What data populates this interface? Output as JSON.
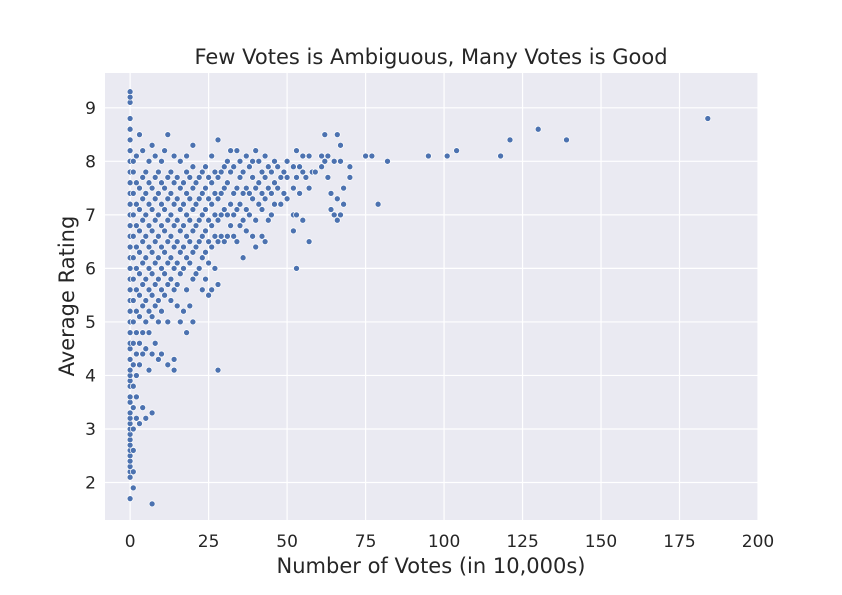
{
  "chart_data": {
    "type": "scatter",
    "title": "Few Votes is Ambiguous, Many Votes is Good",
    "xlabel": "Number of Votes (in 10,000s)",
    "ylabel": "Average Rating",
    "xlim": [
      -8,
      200
    ],
    "ylim": [
      1.3,
      9.65
    ],
    "xticks": [
      "0",
      "25",
      "50",
      "75",
      "100",
      "125",
      "150",
      "175",
      "200"
    ],
    "yticks": [
      "2",
      "3",
      "4",
      "5",
      "6",
      "7",
      "8",
      "9"
    ],
    "grid": true,
    "point_color": "#4c72b0",
    "background": "#eaeaf2",
    "points": [
      [
        0,
        1.7
      ],
      [
        0,
        2.1
      ],
      [
        0,
        2.2
      ],
      [
        0,
        2.3
      ],
      [
        0,
        2.4
      ],
      [
        0,
        2.5
      ],
      [
        0,
        2.6
      ],
      [
        0,
        2.7
      ],
      [
        0,
        2.8
      ],
      [
        0,
        2.9
      ],
      [
        0,
        3.0
      ],
      [
        0,
        3.1
      ],
      [
        0,
        3.2
      ],
      [
        0,
        3.3
      ],
      [
        0,
        3.5
      ],
      [
        0,
        3.6
      ],
      [
        0,
        3.8
      ],
      [
        0,
        3.9
      ],
      [
        0,
        4.0
      ],
      [
        0,
        4.1
      ],
      [
        0,
        4.3
      ],
      [
        0,
        4.5
      ],
      [
        0,
        4.6
      ],
      [
        0,
        4.8
      ],
      [
        0,
        5.0
      ],
      [
        0,
        5.2
      ],
      [
        0,
        5.4
      ],
      [
        0,
        5.6
      ],
      [
        0,
        5.8
      ],
      [
        0,
        6.0
      ],
      [
        0,
        6.2
      ],
      [
        0,
        6.4
      ],
      [
        0,
        6.6
      ],
      [
        0,
        6.8
      ],
      [
        0,
        7.0
      ],
      [
        0,
        7.2
      ],
      [
        0,
        7.4
      ],
      [
        0,
        7.6
      ],
      [
        0,
        7.8
      ],
      [
        0,
        8.0
      ],
      [
        0,
        8.2
      ],
      [
        0,
        8.4
      ],
      [
        0,
        8.6
      ],
      [
        0,
        8.8
      ],
      [
        0,
        9.1
      ],
      [
        0,
        9.2
      ],
      [
        0,
        9.3
      ],
      [
        1,
        1.9
      ],
      [
        1,
        2.2
      ],
      [
        1,
        2.6
      ],
      [
        1,
        3.0
      ],
      [
        1,
        3.4
      ],
      [
        1,
        3.8
      ],
      [
        1,
        4.2
      ],
      [
        1,
        4.6
      ],
      [
        1,
        5.0
      ],
      [
        1,
        5.4
      ],
      [
        1,
        5.8
      ],
      [
        1,
        6.2
      ],
      [
        1,
        6.6
      ],
      [
        1,
        7.0
      ],
      [
        1,
        7.4
      ],
      [
        1,
        7.8
      ],
      [
        1,
        8.0
      ],
      [
        2,
        3.2
      ],
      [
        2,
        3.6
      ],
      [
        2,
        4.0
      ],
      [
        2,
        4.4
      ],
      [
        2,
        4.8
      ],
      [
        2,
        5.2
      ],
      [
        2,
        5.6
      ],
      [
        2,
        6.0
      ],
      [
        2,
        6.4
      ],
      [
        2,
        6.8
      ],
      [
        2,
        7.2
      ],
      [
        2,
        7.6
      ],
      [
        2,
        8.1
      ],
      [
        3,
        3.1
      ],
      [
        3,
        4.2
      ],
      [
        3,
        4.6
      ],
      [
        3,
        5.1
      ],
      [
        3,
        5.5
      ],
      [
        3,
        5.9
      ],
      [
        3,
        6.3
      ],
      [
        3,
        6.7
      ],
      [
        3,
        7.1
      ],
      [
        3,
        7.5
      ],
      [
        3,
        8.5
      ],
      [
        4,
        3.4
      ],
      [
        4,
        4.4
      ],
      [
        4,
        4.8
      ],
      [
        4,
        5.3
      ],
      [
        4,
        5.7
      ],
      [
        4,
        6.1
      ],
      [
        4,
        6.5
      ],
      [
        4,
        6.9
      ],
      [
        4,
        7.3
      ],
      [
        4,
        7.7
      ],
      [
        4,
        8.2
      ],
      [
        5,
        3.2
      ],
      [
        5,
        4.5
      ],
      [
        5,
        5.0
      ],
      [
        5,
        5.4
      ],
      [
        5,
        5.8
      ],
      [
        5,
        6.2
      ],
      [
        5,
        6.6
      ],
      [
        5,
        7.0
      ],
      [
        5,
        7.4
      ],
      [
        5,
        7.8
      ],
      [
        6,
        4.1
      ],
      [
        6,
        4.8
      ],
      [
        6,
        5.2
      ],
      [
        6,
        5.6
      ],
      [
        6,
        6.0
      ],
      [
        6,
        6.4
      ],
      [
        6,
        6.8
      ],
      [
        6,
        7.2
      ],
      [
        6,
        7.6
      ],
      [
        6,
        8.0
      ],
      [
        7,
        1.6
      ],
      [
        7,
        3.3
      ],
      [
        7,
        4.4
      ],
      [
        7,
        5.1
      ],
      [
        7,
        5.5
      ],
      [
        7,
        5.9
      ],
      [
        7,
        6.3
      ],
      [
        7,
        6.7
      ],
      [
        7,
        7.1
      ],
      [
        7,
        7.5
      ],
      [
        7,
        8.3
      ],
      [
        8,
        4.6
      ],
      [
        8,
        5.3
      ],
      [
        8,
        5.7
      ],
      [
        8,
        6.1
      ],
      [
        8,
        6.5
      ],
      [
        8,
        6.9
      ],
      [
        8,
        7.3
      ],
      [
        8,
        7.7
      ],
      [
        8,
        8.1
      ],
      [
        9,
        4.3
      ],
      [
        9,
        5.0
      ],
      [
        9,
        5.4
      ],
      [
        9,
        5.8
      ],
      [
        9,
        6.2
      ],
      [
        9,
        6.6
      ],
      [
        9,
        7.0
      ],
      [
        9,
        7.4
      ],
      [
        9,
        7.8
      ],
      [
        10,
        4.4
      ],
      [
        10,
        5.2
      ],
      [
        10,
        5.6
      ],
      [
        10,
        6.0
      ],
      [
        10,
        6.4
      ],
      [
        10,
        6.8
      ],
      [
        10,
        7.2
      ],
      [
        10,
        7.6
      ],
      [
        10,
        8.0
      ],
      [
        11,
        5.5
      ],
      [
        11,
        5.9
      ],
      [
        11,
        6.3
      ],
      [
        11,
        6.7
      ],
      [
        11,
        7.1
      ],
      [
        11,
        7.5
      ],
      [
        11,
        8.2
      ],
      [
        12,
        4.2
      ],
      [
        12,
        5.0
      ],
      [
        12,
        5.7
      ],
      [
        12,
        6.1
      ],
      [
        12,
        6.5
      ],
      [
        12,
        6.9
      ],
      [
        12,
        7.3
      ],
      [
        12,
        7.7
      ],
      [
        12,
        8.5
      ],
      [
        13,
        5.4
      ],
      [
        13,
        5.8
      ],
      [
        13,
        6.2
      ],
      [
        13,
        6.6
      ],
      [
        13,
        7.0
      ],
      [
        13,
        7.4
      ],
      [
        13,
        7.8
      ],
      [
        14,
        4.1
      ],
      [
        14,
        4.3
      ],
      [
        14,
        5.6
      ],
      [
        14,
        6.0
      ],
      [
        14,
        6.4
      ],
      [
        14,
        6.8
      ],
      [
        14,
        7.2
      ],
      [
        14,
        7.6
      ],
      [
        14,
        8.1
      ],
      [
        15,
        5.3
      ],
      [
        15,
        5.7
      ],
      [
        15,
        6.1
      ],
      [
        15,
        6.5
      ],
      [
        15,
        6.9
      ],
      [
        15,
        7.3
      ],
      [
        15,
        7.7
      ],
      [
        16,
        5.0
      ],
      [
        16,
        5.9
      ],
      [
        16,
        6.3
      ],
      [
        16,
        6.7
      ],
      [
        16,
        7.1
      ],
      [
        16,
        7.5
      ],
      [
        16,
        8.0
      ],
      [
        17,
        5.2
      ],
      [
        17,
        6.0
      ],
      [
        17,
        6.4
      ],
      [
        17,
        6.8
      ],
      [
        17,
        7.2
      ],
      [
        17,
        7.6
      ],
      [
        18,
        4.8
      ],
      [
        18,
        5.6
      ],
      [
        18,
        6.2
      ],
      [
        18,
        6.6
      ],
      [
        18,
        7.0
      ],
      [
        18,
        7.4
      ],
      [
        18,
        7.8
      ],
      [
        18,
        8.1
      ],
      [
        19,
        5.3
      ],
      [
        19,
        6.1
      ],
      [
        19,
        6.5
      ],
      [
        19,
        6.9
      ],
      [
        19,
        7.3
      ],
      [
        19,
        7.7
      ],
      [
        20,
        5.0
      ],
      [
        20,
        5.8
      ],
      [
        20,
        6.3
      ],
      [
        20,
        6.7
      ],
      [
        20,
        7.1
      ],
      [
        20,
        7.5
      ],
      [
        20,
        7.9
      ],
      [
        20,
        8.3
      ],
      [
        21,
        5.9
      ],
      [
        21,
        6.4
      ],
      [
        21,
        6.8
      ],
      [
        21,
        7.2
      ],
      [
        21,
        7.6
      ],
      [
        22,
        6.0
      ],
      [
        22,
        6.5
      ],
      [
        22,
        6.9
      ],
      [
        22,
        7.3
      ],
      [
        22,
        7.7
      ],
      [
        23,
        5.6
      ],
      [
        23,
        6.2
      ],
      [
        23,
        6.6
      ],
      [
        23,
        7.0
      ],
      [
        23,
        7.4
      ],
      [
        23,
        7.8
      ],
      [
        24,
        5.8
      ],
      [
        24,
        6.3
      ],
      [
        24,
        6.7
      ],
      [
        24,
        7.1
      ],
      [
        24,
        7.5
      ],
      [
        24,
        7.9
      ],
      [
        25,
        5.5
      ],
      [
        25,
        6.1
      ],
      [
        25,
        6.5
      ],
      [
        25,
        6.9
      ],
      [
        25,
        7.3
      ],
      [
        25,
        7.7
      ],
      [
        26,
        5.6
      ],
      [
        26,
        6.4
      ],
      [
        26,
        6.8
      ],
      [
        26,
        7.2
      ],
      [
        26,
        7.6
      ],
      [
        26,
        8.1
      ],
      [
        27,
        6.0
      ],
      [
        27,
        6.6
      ],
      [
        27,
        7.0
      ],
      [
        27,
        7.4
      ],
      [
        27,
        7.8
      ],
      [
        28,
        4.1
      ],
      [
        28,
        5.7
      ],
      [
        28,
        6.5
      ],
      [
        28,
        6.9
      ],
      [
        28,
        7.3
      ],
      [
        28,
        7.7
      ],
      [
        28,
        8.4
      ],
      [
        29,
        6.6
      ],
      [
        29,
        7.0
      ],
      [
        29,
        7.4
      ],
      [
        29,
        7.8
      ],
      [
        30,
        6.5
      ],
      [
        30,
        7.1
      ],
      [
        30,
        7.5
      ],
      [
        30,
        7.9
      ],
      [
        31,
        6.6
      ],
      [
        31,
        7.0
      ],
      [
        31,
        7.6
      ],
      [
        31,
        8.0
      ],
      [
        32,
        6.8
      ],
      [
        32,
        7.2
      ],
      [
        32,
        7.8
      ],
      [
        32,
        8.2
      ],
      [
        33,
        6.6
      ],
      [
        33,
        7.0
      ],
      [
        33,
        7.4
      ],
      [
        33,
        7.9
      ],
      [
        34,
        6.5
      ],
      [
        34,
        7.1
      ],
      [
        34,
        7.5
      ],
      [
        34,
        8.2
      ],
      [
        35,
        6.8
      ],
      [
        35,
        7.2
      ],
      [
        35,
        7.7
      ],
      [
        35,
        8.0
      ],
      [
        36,
        6.2
      ],
      [
        36,
        6.9
      ],
      [
        36,
        7.4
      ],
      [
        36,
        7.8
      ],
      [
        37,
        6.7
      ],
      [
        37,
        7.1
      ],
      [
        37,
        7.5
      ],
      [
        37,
        8.1
      ],
      [
        38,
        7.0
      ],
      [
        38,
        7.4
      ],
      [
        38,
        7.9
      ],
      [
        39,
        6.6
      ],
      [
        39,
        7.3
      ],
      [
        39,
        7.7
      ],
      [
        39,
        8.0
      ],
      [
        40,
        6.4
      ],
      [
        40,
        6.9
      ],
      [
        40,
        7.5
      ],
      [
        40,
        8.2
      ],
      [
        41,
        7.2
      ],
      [
        41,
        7.6
      ],
      [
        41,
        8.0
      ],
      [
        42,
        6.6
      ],
      [
        42,
        7.1
      ],
      [
        42,
        7.4
      ],
      [
        42,
        7.8
      ],
      [
        43,
        6.5
      ],
      [
        43,
        7.3
      ],
      [
        43,
        7.7
      ],
      [
        43,
        8.1
      ],
      [
        44,
        6.9
      ],
      [
        44,
        7.5
      ],
      [
        44,
        7.9
      ],
      [
        45,
        7.0
      ],
      [
        45,
        7.4
      ],
      [
        45,
        7.8
      ],
      [
        46,
        7.2
      ],
      [
        46,
        7.6
      ],
      [
        46,
        8.0
      ],
      [
        47,
        7.5
      ],
      [
        47,
        7.9
      ],
      [
        48,
        7.2
      ],
      [
        48,
        7.7
      ],
      [
        49,
        7.4
      ],
      [
        49,
        7.8
      ],
      [
        50,
        7.3
      ],
      [
        50,
        7.7
      ],
      [
        50,
        8.0
      ],
      [
        52,
        6.7
      ],
      [
        52,
        7.0
      ],
      [
        52,
        7.5
      ],
      [
        52,
        7.9
      ],
      [
        53,
        6.0
      ],
      [
        53,
        7.0
      ],
      [
        53,
        7.7
      ],
      [
        53,
        8.2
      ],
      [
        54,
        7.4
      ],
      [
        54,
        7.9
      ],
      [
        55,
        6.9
      ],
      [
        55,
        7.8
      ],
      [
        55,
        8.1
      ],
      [
        56,
        7.7
      ],
      [
        57,
        6.5
      ],
      [
        57,
        7.5
      ],
      [
        57,
        8.1
      ],
      [
        58,
        7.8
      ],
      [
        59,
        7.8
      ],
      [
        61,
        8.1
      ],
      [
        61,
        7.9
      ],
      [
        62,
        8.5
      ],
      [
        62,
        8.0
      ],
      [
        63,
        7.7
      ],
      [
        63,
        8.1
      ],
      [
        64,
        7.1
      ],
      [
        64,
        7.4
      ],
      [
        65,
        7.0
      ],
      [
        65,
        8.0
      ],
      [
        66,
        6.9
      ],
      [
        66,
        7.3
      ],
      [
        66,
        8.5
      ],
      [
        67,
        7.0
      ],
      [
        67,
        8.0
      ],
      [
        67,
        8.3
      ],
      [
        68,
        7.5
      ],
      [
        68,
        7.2
      ],
      [
        70,
        7.7
      ],
      [
        70,
        7.9
      ],
      [
        75,
        8.1
      ],
      [
        77,
        8.1
      ],
      [
        79,
        7.2
      ],
      [
        82,
        8.0
      ],
      [
        95,
        8.1
      ],
      [
        101,
        8.1
      ],
      [
        104,
        8.2
      ],
      [
        118,
        8.1
      ],
      [
        121,
        8.4
      ],
      [
        130,
        8.6
      ],
      [
        139,
        8.4
      ],
      [
        184,
        8.8
      ]
    ]
  }
}
